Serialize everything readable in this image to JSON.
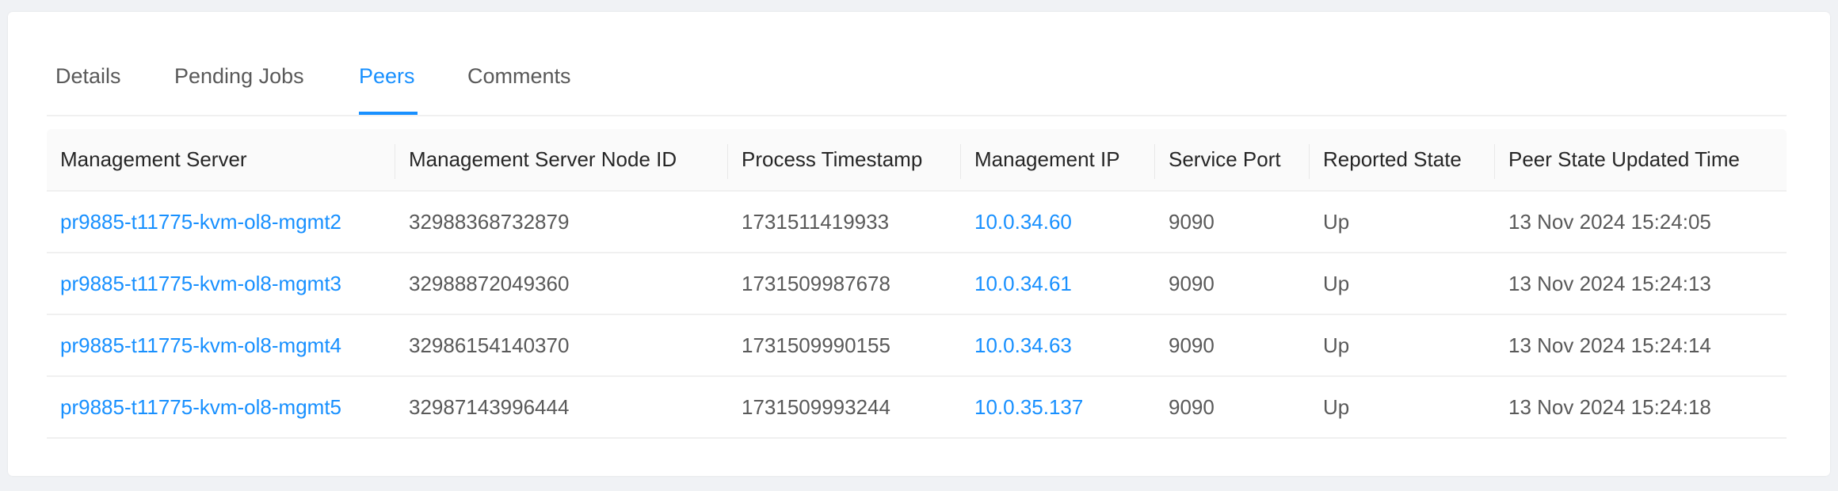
{
  "tabs": [
    {
      "label": "Details"
    },
    {
      "label": "Pending Jobs"
    },
    {
      "label": "Peers"
    },
    {
      "label": "Comments"
    }
  ],
  "active_tab": "Peers",
  "accent_color": "#1890ff",
  "table": {
    "headers": [
      "Management Server",
      "Management Server Node ID",
      "Process Timestamp",
      "Management IP",
      "Service Port",
      "Reported State",
      "Peer State Updated Time"
    ],
    "rows": [
      [
        "pr9885-t11775-kvm-ol8-mgmt2",
        "32988368732879",
        "1731511419933",
        "10.0.34.60",
        "9090",
        "Up",
        "13 Nov 2024 15:24:05"
      ],
      [
        "pr9885-t11775-kvm-ol8-mgmt3",
        "32988872049360",
        "1731509987678",
        "10.0.34.61",
        "9090",
        "Up",
        "13 Nov 2024 15:24:13"
      ],
      [
        "pr9885-t11775-kvm-ol8-mgmt4",
        "32986154140370",
        "1731509990155",
        "10.0.34.63",
        "9090",
        "Up",
        "13 Nov 2024 15:24:14"
      ],
      [
        "pr9885-t11775-kvm-ol8-mgmt5",
        "32987143996444",
        "1731509993244",
        "10.0.35.137",
        "9090",
        "Up",
        "13 Nov 2024 15:24:18"
      ]
    ]
  }
}
